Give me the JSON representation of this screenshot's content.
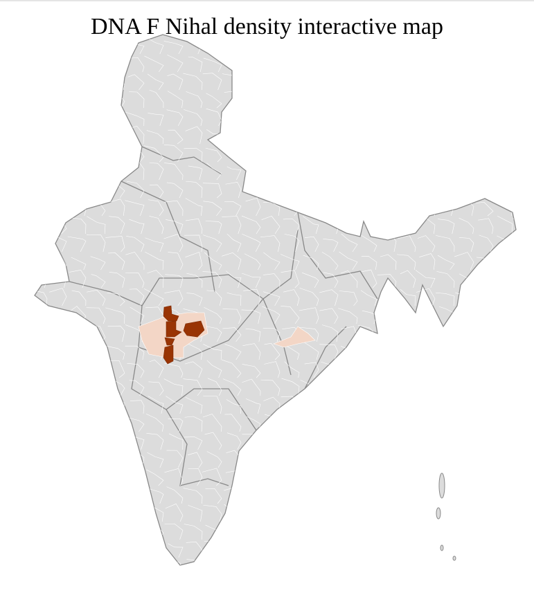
{
  "title": "DNA F Nihal density interactive map",
  "colors": {
    "land": "#dcdcdc",
    "district_border": "#ffffff",
    "state_border": "#888888",
    "high_density": "#993404",
    "low_density": "#f3d6c6"
  }
}
